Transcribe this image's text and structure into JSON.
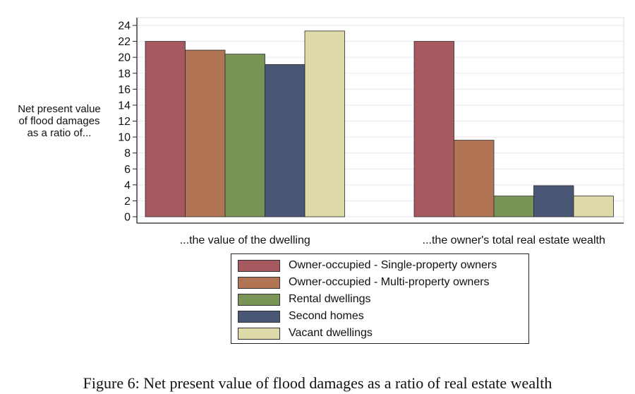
{
  "chart_data": {
    "type": "bar",
    "categories": [
      "...the value of the dwelling",
      "...the owner's total real estate wealth"
    ],
    "series": [
      {
        "name": "Owner-occupied - Single-property owners",
        "color": "#a65a60",
        "values": [
          22.0,
          22.0
        ]
      },
      {
        "name": "Owner-occupied - Multi-property owners",
        "color": "#b17454",
        "values": [
          20.9,
          9.6
        ]
      },
      {
        "name": "Rental dwellings",
        "color": "#7a9458",
        "values": [
          20.4,
          2.6
        ]
      },
      {
        "name": "Second homes",
        "color": "#4a5676",
        "values": [
          19.1,
          3.9
        ]
      },
      {
        "name": "Vacant dwellings",
        "color": "#dedaaa",
        "values": [
          23.3,
          2.6
        ]
      }
    ],
    "ylabel_lines": [
      "Net present value",
      "of flood damages",
      "as a ratio of..."
    ],
    "yticks": [
      0,
      2,
      4,
      6,
      8,
      10,
      12,
      14,
      16,
      18,
      20,
      22,
      24
    ],
    "ylim": [
      0,
      24
    ],
    "grid": true,
    "legend_position": "bottom"
  },
  "caption": "Figure 6: Net present value of flood damages as a ratio of real estate wealth"
}
